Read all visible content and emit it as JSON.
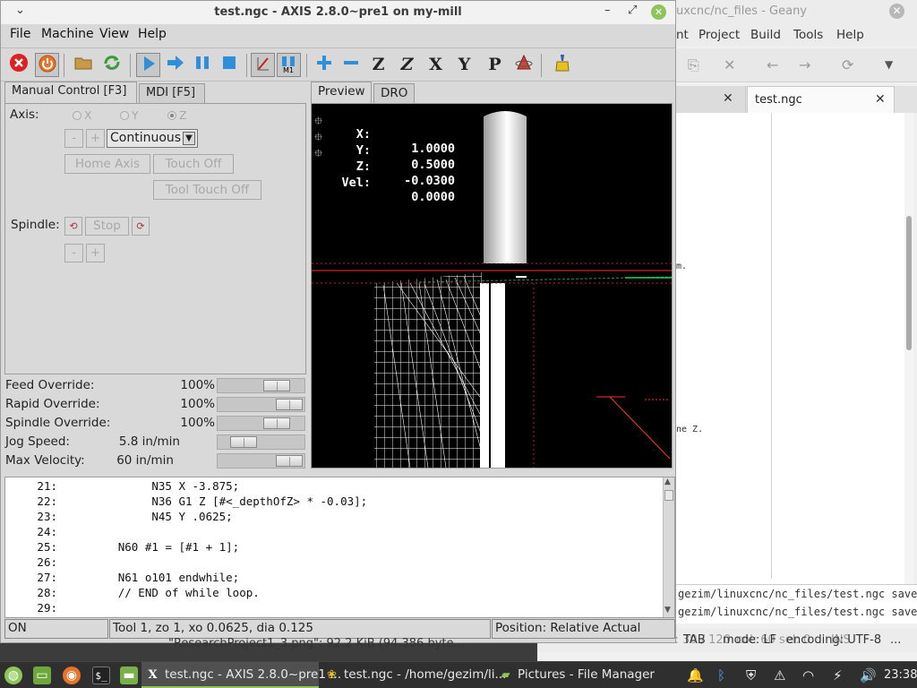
{
  "geany": {
    "title": "uxcnc/nc_files - Geany",
    "menu": [
      "nt",
      "Project",
      "Build",
      "Tools",
      "Help"
    ],
    "tab_label": "test.ngc",
    "edit_fragments": [
      "m.",
      "ne Z."
    ],
    "messages": [
      "gezim/linuxcnc/nc_files/test.ngc saved.",
      "gezim/linuxcnc/nc_files/test.ngc saved."
    ],
    "status": {
      "line": "line: 30 / 120",
      "col": "col: 60",
      "sel": "sel: 0",
      "ins": "INS",
      "tab": "TAB",
      "mode": "mode: LF",
      "encoding": "encoding: UTF-8",
      "more": "..."
    }
  },
  "axis": {
    "title": "test.ngc - AXIS 2.8.0~pre1 on my-mill",
    "menu": {
      "file": "File",
      "machine": "Machine",
      "view": "View",
      "help": "Help"
    },
    "left_tabs": {
      "manual": "Manual Control [F3]",
      "mdi": "MDI [F5]"
    },
    "manual": {
      "axis_label": "Axis:",
      "axes": [
        "X",
        "Y",
        "Z"
      ],
      "selected_axis": "Z",
      "minus": "-",
      "plus": "+",
      "jog_mode": "Continuous",
      "home_axis": "Home Axis",
      "touch_off": "Touch Off",
      "tool_touch_off": "Tool Touch Off",
      "spindle_label": "Spindle:",
      "spindle_stop": "Stop"
    },
    "overrides": [
      {
        "label": "Feed Override:",
        "value": "100",
        "unit": "%",
        "level": 0.78
      },
      {
        "label": "Rapid Override:",
        "value": "100",
        "unit": "%",
        "level": 1.0
      },
      {
        "label": "Spindle Override:",
        "value": "100",
        "unit": "%",
        "level": 0.78
      },
      {
        "label": "Jog Speed:",
        "value": "5.8",
        "unit": "in/min",
        "level": 0.22
      },
      {
        "label": "Max Velocity:",
        "value": "60",
        "unit": "in/min",
        "level": 1.0
      }
    ],
    "right_tabs": {
      "preview": "Preview",
      "dro": "DRO"
    },
    "dro": [
      {
        "axis": "X:",
        "value": "1.0000"
      },
      {
        "axis": "Y:",
        "value": "0.5000"
      },
      {
        "axis": "Z:",
        "value": "-0.0300"
      },
      {
        "axis": "Vel:",
        "value": "0.0000"
      }
    ],
    "code_lines": [
      {
        "n": "21:",
        "text": "              N35 X -3.875;"
      },
      {
        "n": "22:",
        "text": "              N36 G1 Z [#<_depthOfZ> * -0.03];"
      },
      {
        "n": "23:",
        "text": "              N45 Y .0625;"
      },
      {
        "n": "24:",
        "text": ""
      },
      {
        "n": "25:",
        "text": "         N60 #1 = [#1 + 1];"
      },
      {
        "n": "26:",
        "text": ""
      },
      {
        "n": "27:",
        "text": "         N61 o101 endwhile;"
      },
      {
        "n": "28:",
        "text": "         // END of while loop."
      },
      {
        "n": "29:",
        "text": ""
      }
    ],
    "status": {
      "state": "ON",
      "tool": "Tool 1, zo 1, xo 0.0625, dia 0.125",
      "position": "Position: Relative Actual"
    }
  },
  "notification": "\"ResearchProject1_3.png\": 92.2 KiB (94,386 byte...",
  "taskbar": {
    "tasks": [
      {
        "label": "test.ngc - AXIS 2.8.0~pre1 ...",
        "active": true
      },
      {
        "label": "test.ngc - /home/gezim/li...",
        "active": false
      },
      {
        "label": "Pictures - File Manager",
        "active": false
      }
    ],
    "clock": "23:38"
  },
  "colors": {
    "accent_green": "#8fc45a",
    "preview_bg": "#000000",
    "taskbar_bg": "#2f2f2f"
  }
}
